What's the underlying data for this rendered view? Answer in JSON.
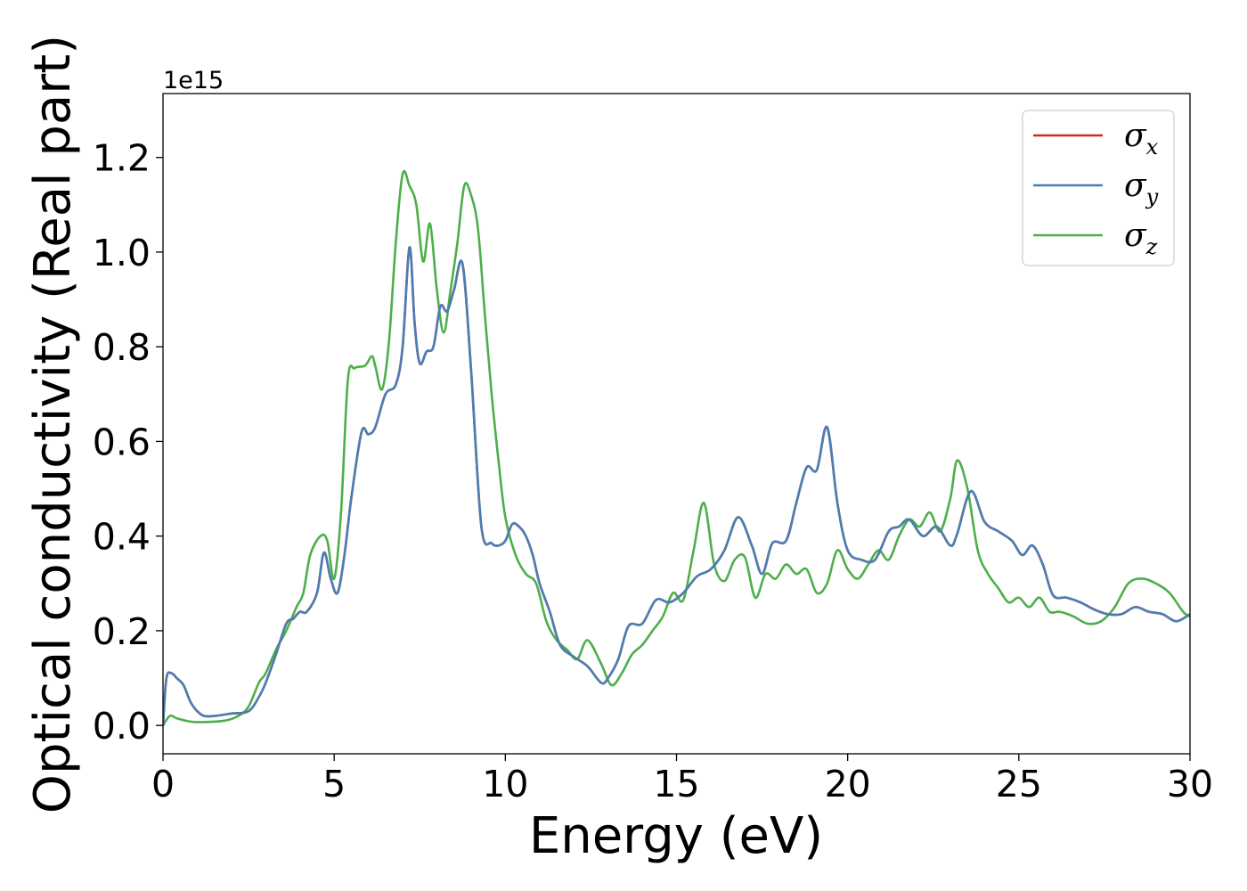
{
  "chart_data": {
    "type": "line",
    "xlabel": "Energy (eV)",
    "ylabel": "Optical conductivity (Real part)",
    "y_offset_text": "1e15",
    "xlim": [
      0,
      30
    ],
    "ylim": [
      -0.06,
      1.335
    ],
    "x_ticks": [
      0,
      5,
      10,
      15,
      20,
      25,
      30
    ],
    "x_tick_labels": [
      "0",
      "5",
      "10",
      "15",
      "20",
      "25",
      "30"
    ],
    "y_ticks": [
      0.0,
      0.2,
      0.4,
      0.6,
      0.8,
      1.0,
      1.2
    ],
    "y_tick_labels": [
      "0.0",
      "0.2",
      "0.4",
      "0.6",
      "0.8",
      "1.0",
      "1.2"
    ],
    "grid": false,
    "legend_position": "top-right",
    "series": [
      {
        "name": "σx",
        "legend_symbol": "σ",
        "legend_subscript": "x",
        "color": "#d62728",
        "x": [
          0,
          0.1,
          0.25,
          0.4,
          0.6,
          0.8,
          1.0,
          1.2,
          1.5,
          2.0,
          2.5,
          2.8,
          3.0,
          3.3,
          3.6,
          3.8,
          4.0,
          4.2,
          4.5,
          4.7,
          4.9,
          5.1,
          5.3,
          5.5,
          5.8,
          6.0,
          6.2,
          6.5,
          6.8,
          7.0,
          7.2,
          7.35,
          7.5,
          7.7,
          7.9,
          8.1,
          8.3,
          8.5,
          8.75,
          9.0,
          9.3,
          9.6,
          9.8,
          10.0,
          10.2,
          10.4,
          10.6,
          10.8,
          11.0,
          11.3,
          11.6,
          12.0,
          12.4,
          12.8,
          13.0,
          13.3,
          13.6,
          14.0,
          14.4,
          14.8,
          15.2,
          15.6,
          16.0,
          16.4,
          16.8,
          17.2,
          17.5,
          17.8,
          18.2,
          18.5,
          18.8,
          19.1,
          19.4,
          19.7,
          20.0,
          20.4,
          20.8,
          21.2,
          21.5,
          21.8,
          22.2,
          22.6,
          23.0,
          23.2,
          23.6,
          24.0,
          24.4,
          24.8,
          25.1,
          25.4,
          25.7,
          26.0,
          26.4,
          26.8,
          27.2,
          27.6,
          28.0,
          28.4,
          28.8,
          29.2,
          29.6,
          30.0
        ],
        "y": [
          0.0,
          0.1,
          0.11,
          0.1,
          0.085,
          0.05,
          0.03,
          0.02,
          0.02,
          0.025,
          0.03,
          0.06,
          0.09,
          0.15,
          0.215,
          0.225,
          0.24,
          0.24,
          0.28,
          0.365,
          0.31,
          0.28,
          0.36,
          0.48,
          0.62,
          0.615,
          0.63,
          0.7,
          0.72,
          0.8,
          1.01,
          0.85,
          0.765,
          0.79,
          0.8,
          0.885,
          0.875,
          0.92,
          0.975,
          0.75,
          0.42,
          0.385,
          0.38,
          0.39,
          0.425,
          0.42,
          0.4,
          0.36,
          0.3,
          0.24,
          0.17,
          0.145,
          0.125,
          0.09,
          0.1,
          0.14,
          0.21,
          0.215,
          0.265,
          0.26,
          0.28,
          0.315,
          0.33,
          0.37,
          0.44,
          0.38,
          0.32,
          0.385,
          0.39,
          0.47,
          0.545,
          0.54,
          0.63,
          0.47,
          0.37,
          0.35,
          0.35,
          0.41,
          0.42,
          0.435,
          0.4,
          0.42,
          0.38,
          0.405,
          0.495,
          0.43,
          0.41,
          0.39,
          0.36,
          0.38,
          0.34,
          0.275,
          0.27,
          0.26,
          0.245,
          0.235,
          0.235,
          0.25,
          0.24,
          0.235,
          0.22,
          0.235
        ]
      },
      {
        "name": "σy",
        "legend_symbol": "σ",
        "legend_subscript": "y",
        "color": "#4a7eb4",
        "x": [
          0,
          0.1,
          0.25,
          0.4,
          0.6,
          0.8,
          1.0,
          1.2,
          1.5,
          2.0,
          2.5,
          2.8,
          3.0,
          3.3,
          3.6,
          3.8,
          4.0,
          4.2,
          4.5,
          4.7,
          4.9,
          5.1,
          5.3,
          5.5,
          5.8,
          6.0,
          6.2,
          6.5,
          6.8,
          7.0,
          7.2,
          7.35,
          7.5,
          7.7,
          7.9,
          8.1,
          8.3,
          8.5,
          8.75,
          9.0,
          9.3,
          9.6,
          9.8,
          10.0,
          10.2,
          10.4,
          10.6,
          10.8,
          11.0,
          11.3,
          11.6,
          12.0,
          12.4,
          12.8,
          13.0,
          13.3,
          13.6,
          14.0,
          14.4,
          14.8,
          15.2,
          15.6,
          16.0,
          16.4,
          16.8,
          17.2,
          17.5,
          17.8,
          18.2,
          18.5,
          18.8,
          19.1,
          19.4,
          19.7,
          20.0,
          20.4,
          20.8,
          21.2,
          21.5,
          21.8,
          22.2,
          22.6,
          23.0,
          23.2,
          23.6,
          24.0,
          24.4,
          24.8,
          25.1,
          25.4,
          25.7,
          26.0,
          26.4,
          26.8,
          27.2,
          27.6,
          28.0,
          28.4,
          28.8,
          29.2,
          29.6,
          30.0
        ],
        "y": [
          0.0,
          0.1,
          0.11,
          0.1,
          0.085,
          0.05,
          0.03,
          0.02,
          0.02,
          0.025,
          0.03,
          0.06,
          0.09,
          0.15,
          0.215,
          0.225,
          0.24,
          0.24,
          0.28,
          0.365,
          0.31,
          0.28,
          0.36,
          0.48,
          0.62,
          0.615,
          0.63,
          0.7,
          0.72,
          0.8,
          1.01,
          0.85,
          0.765,
          0.79,
          0.8,
          0.885,
          0.875,
          0.92,
          0.975,
          0.75,
          0.42,
          0.385,
          0.38,
          0.39,
          0.425,
          0.42,
          0.4,
          0.36,
          0.3,
          0.24,
          0.17,
          0.145,
          0.125,
          0.09,
          0.1,
          0.14,
          0.21,
          0.215,
          0.265,
          0.26,
          0.28,
          0.315,
          0.33,
          0.37,
          0.44,
          0.38,
          0.32,
          0.385,
          0.39,
          0.47,
          0.545,
          0.54,
          0.63,
          0.47,
          0.37,
          0.35,
          0.35,
          0.41,
          0.42,
          0.435,
          0.4,
          0.42,
          0.38,
          0.405,
          0.495,
          0.43,
          0.41,
          0.39,
          0.36,
          0.38,
          0.34,
          0.275,
          0.27,
          0.26,
          0.245,
          0.235,
          0.235,
          0.25,
          0.24,
          0.235,
          0.22,
          0.235
        ]
      },
      {
        "name": "σz",
        "legend_symbol": "σ",
        "legend_subscript": "z",
        "color": "#4daf4a",
        "x": [
          0,
          0.2,
          0.4,
          0.8,
          1.2,
          1.8,
          2.2,
          2.5,
          2.8,
          3.0,
          3.3,
          3.6,
          3.9,
          4.1,
          4.3,
          4.6,
          4.8,
          5.0,
          5.2,
          5.4,
          5.6,
          5.9,
          6.1,
          6.2,
          6.4,
          6.6,
          6.8,
          7.0,
          7.2,
          7.4,
          7.6,
          7.8,
          8.0,
          8.2,
          8.4,
          8.6,
          8.8,
          9.0,
          9.2,
          9.4,
          9.6,
          9.8,
          10.0,
          10.3,
          10.6,
          10.9,
          11.2,
          11.5,
          11.8,
          12.1,
          12.4,
          12.8,
          13.1,
          13.4,
          13.7,
          14.0,
          14.3,
          14.6,
          14.9,
          15.2,
          15.5,
          15.8,
          16.1,
          16.4,
          16.7,
          17.0,
          17.3,
          17.6,
          17.9,
          18.2,
          18.5,
          18.8,
          19.1,
          19.4,
          19.7,
          20.0,
          20.3,
          20.6,
          20.9,
          21.2,
          21.5,
          21.8,
          22.1,
          22.4,
          22.7,
          23.0,
          23.2,
          23.5,
          23.8,
          24.1,
          24.4,
          24.7,
          25.0,
          25.3,
          25.6,
          25.9,
          26.2,
          26.6,
          27.0,
          27.4,
          27.8,
          28.2,
          28.6,
          29.0,
          29.4,
          29.8,
          30.0
        ],
        "y": [
          0.0,
          0.02,
          0.015,
          0.008,
          0.007,
          0.01,
          0.02,
          0.04,
          0.09,
          0.11,
          0.16,
          0.2,
          0.25,
          0.28,
          0.36,
          0.4,
          0.39,
          0.31,
          0.45,
          0.73,
          0.755,
          0.76,
          0.78,
          0.76,
          0.71,
          0.81,
          1.02,
          1.165,
          1.14,
          1.1,
          0.98,
          1.06,
          0.92,
          0.83,
          0.92,
          1.02,
          1.14,
          1.12,
          1.05,
          0.87,
          0.7,
          0.56,
          0.44,
          0.36,
          0.32,
          0.3,
          0.22,
          0.18,
          0.16,
          0.14,
          0.18,
          0.13,
          0.085,
          0.11,
          0.15,
          0.17,
          0.2,
          0.23,
          0.28,
          0.265,
          0.37,
          0.47,
          0.34,
          0.305,
          0.35,
          0.355,
          0.27,
          0.32,
          0.31,
          0.34,
          0.32,
          0.33,
          0.28,
          0.3,
          0.37,
          0.33,
          0.31,
          0.34,
          0.37,
          0.35,
          0.4,
          0.435,
          0.42,
          0.45,
          0.41,
          0.48,
          0.56,
          0.5,
          0.37,
          0.32,
          0.29,
          0.26,
          0.27,
          0.25,
          0.27,
          0.24,
          0.24,
          0.23,
          0.215,
          0.22,
          0.25,
          0.3,
          0.31,
          0.3,
          0.28,
          0.24,
          0.23
        ]
      }
    ]
  }
}
